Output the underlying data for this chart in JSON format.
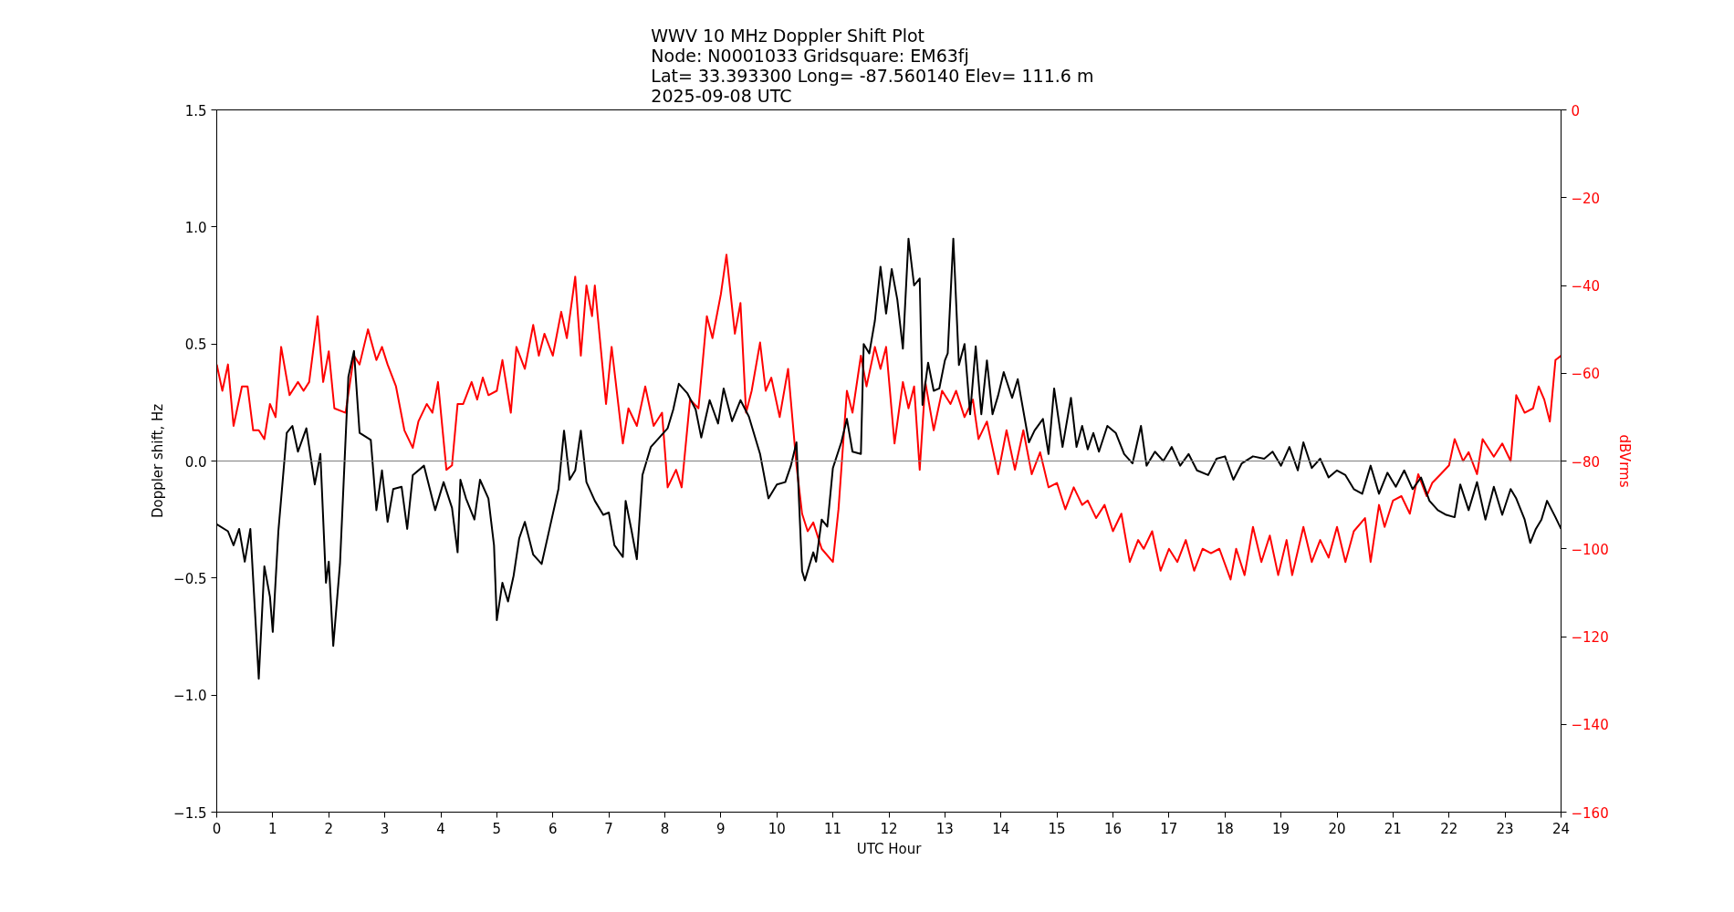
{
  "chart_data": {
    "type": "line",
    "title": "WWV 10 MHz Doppler Shift Plot\nNode:  N0001033     Gridsquare:  EM63fj\nLat= 33.393300    Long= -87.560140    Elev= 111.6 m\n2025-09-08  UTC",
    "xlabel": "UTC Hour",
    "ylabel": "Doppler shift, Hz",
    "y2label": "dBVrms",
    "xlim": [
      0,
      24
    ],
    "xticks": [
      0,
      1,
      2,
      3,
      4,
      5,
      6,
      7,
      8,
      9,
      10,
      11,
      12,
      13,
      14,
      15,
      16,
      17,
      18,
      19,
      20,
      21,
      22,
      23,
      24
    ],
    "ylim": [
      -1.5,
      1.5
    ],
    "yticks": [
      {
        "value": -1.5,
        "label": "−1.5"
      },
      {
        "value": -1.0,
        "label": "−1.0"
      },
      {
        "value": -0.5,
        "label": "−0.5"
      },
      {
        "value": 0.0,
        "label": "0.0"
      },
      {
        "value": 0.5,
        "label": "0.5"
      },
      {
        "value": 1.0,
        "label": "1.0"
      },
      {
        "value": 1.5,
        "label": "1.5"
      }
    ],
    "y2lim": [
      -160,
      0
    ],
    "y2ticks": [
      {
        "value": -160,
        "label": "−160"
      },
      {
        "value": -140,
        "label": "−140"
      },
      {
        "value": -120,
        "label": "−120"
      },
      {
        "value": -100,
        "label": "−100"
      },
      {
        "value": -80,
        "label": "−80"
      },
      {
        "value": -60,
        "label": "−60"
      },
      {
        "value": -40,
        "label": "−40"
      },
      {
        "value": -20,
        "label": "−20"
      },
      0
    ],
    "grid": false,
    "line_style": "solid",
    "marker": "none",
    "ref_lines": [
      {
        "axis": "y",
        "value": 0,
        "color": "#808080"
      }
    ],
    "series": [
      {
        "color": "#ff0000",
        "axis": "y2",
        "x": [
          0,
          0.1,
          0.2,
          0.3,
          0.45,
          0.55,
          0.65,
          0.75,
          0.85,
          0.95,
          1.05,
          1.15,
          1.3,
          1.45,
          1.55,
          1.65,
          1.8,
          1.9,
          2.0,
          2.1,
          2.3,
          2.45,
          2.55,
          2.7,
          2.85,
          2.95,
          3.05,
          3.2,
          3.35,
          3.5,
          3.6,
          3.75,
          3.85,
          3.95,
          4.1,
          4.2,
          4.3,
          4.4,
          4.55,
          4.65,
          4.75,
          4.85,
          5.0,
          5.1,
          5.25,
          5.35,
          5.5,
          5.65,
          5.75,
          5.85,
          6.0,
          6.15,
          6.25,
          6.4,
          6.5,
          6.6,
          6.7,
          6.75,
          6.95,
          7.05,
          7.25,
          7.35,
          7.5,
          7.65,
          7.8,
          7.95,
          8.05,
          8.2,
          8.3,
          8.45,
          8.6,
          8.75,
          8.85,
          9.0,
          9.1,
          9.25,
          9.35,
          9.45,
          9.55,
          9.7,
          9.8,
          9.9,
          10.05,
          10.2,
          10.35,
          10.45,
          10.55,
          10.65,
          10.8,
          11.0,
          11.1,
          11.25,
          11.35,
          11.5,
          11.6,
          11.75,
          11.85,
          11.95,
          12.1,
          12.25,
          12.35,
          12.45,
          12.55,
          12.65,
          12.8,
          12.95,
          13.1,
          13.2,
          13.35,
          13.5,
          13.6,
          13.75,
          13.95,
          14.1,
          14.25,
          14.4,
          14.55,
          14.7,
          14.85,
          15.0,
          15.15,
          15.3,
          15.45,
          15.55,
          15.7,
          15.85,
          16.0,
          16.15,
          16.3,
          16.45,
          16.55,
          16.7,
          16.85,
          17.0,
          17.15,
          17.3,
          17.45,
          17.6,
          17.75,
          17.9,
          18.1,
          18.2,
          18.35,
          18.5,
          18.65,
          18.8,
          18.95,
          19.1,
          19.2,
          19.4,
          19.55,
          19.7,
          19.85,
          20.0,
          20.15,
          20.3,
          20.5,
          20.6,
          20.75,
          20.85,
          21.0,
          21.15,
          21.3,
          21.45,
          21.6,
          21.7,
          21.85,
          22.0,
          22.1,
          22.25,
          22.35,
          22.5,
          22.6,
          22.8,
          22.95,
          23.1,
          23.2,
          23.35,
          23.5,
          23.6,
          23.7,
          23.8,
          23.9,
          24.0
        ],
        "values": [
          -58,
          -64,
          -58,
          -72,
          -63,
          -63,
          -73,
          -73,
          -75,
          -67,
          -70,
          -54,
          -65,
          -62,
          -64,
          -62,
          -47,
          -62,
          -55,
          -68,
          -69,
          -56,
          -58,
          -50,
          -57,
          -54,
          -58,
          -63,
          -73,
          -77,
          -71,
          -67,
          -69,
          -62,
          -82,
          -81,
          -67,
          -67,
          -62,
          -66,
          -61,
          -65,
          -64,
          -57,
          -69,
          -54,
          -59,
          -49,
          -56,
          -51,
          -56,
          -46,
          -52,
          -38,
          -56,
          -40,
          -47,
          -40,
          -67,
          -54,
          -76,
          -68,
          -72,
          -63,
          -72,
          -69,
          -86,
          -82,
          -86,
          -66,
          -68,
          -47,
          -52,
          -42,
          -33,
          -51,
          -44,
          -69,
          -64,
          -53,
          -64,
          -61,
          -70,
          -59,
          -81,
          -92,
          -96,
          -94,
          -100,
          -103,
          -91,
          -64,
          -69,
          -56,
          -63,
          -54,
          -59,
          -54,
          -76,
          -62,
          -68,
          -63,
          -82,
          -62,
          -73,
          -64,
          -67,
          -64,
          -70,
          -66,
          -75,
          -71,
          -83,
          -73,
          -82,
          -73,
          -83,
          -78,
          -86,
          -85,
          -91,
          -86,
          -90,
          -89,
          -93,
          -90,
          -96,
          -92,
          -103,
          -98,
          -100,
          -96,
          -105,
          -100,
          -103,
          -98,
          -105,
          -100,
          -101,
          -100,
          -107,
          -100,
          -106,
          -95,
          -103,
          -97,
          -106,
          -98,
          -106,
          -95,
          -103,
          -98,
          -102,
          -95,
          -103,
          -96,
          -93,
          -103,
          -90,
          -95,
          -89,
          -88,
          -92,
          -83,
          -88,
          -85,
          -83,
          -81,
          -75,
          -80,
          -78,
          -83,
          -75,
          -79,
          -76,
          -80,
          -65,
          -69,
          -68,
          -63,
          -66,
          -71,
          -57,
          -56
        ]
      },
      {
        "color": "#000000",
        "x": [
          0,
          0.2,
          0.3,
          0.4,
          0.5,
          0.6,
          0.75,
          0.85,
          0.95,
          1.0,
          1.1,
          1.2,
          1.25,
          1.35,
          1.45,
          1.6,
          1.75,
          1.85,
          1.95,
          2.0,
          2.08,
          2.2,
          2.35,
          2.45,
          2.55,
          2.75,
          2.85,
          2.95,
          3.05,
          3.15,
          3.3,
          3.4,
          3.5,
          3.7,
          3.9,
          4.05,
          4.2,
          4.3,
          4.35,
          4.45,
          4.6,
          4.7,
          4.85,
          4.95,
          5.0,
          5.1,
          5.2,
          5.3,
          5.4,
          5.5,
          5.65,
          5.8,
          5.95,
          6.1,
          6.2,
          6.3,
          6.4,
          6.5,
          6.6,
          6.75,
          6.9,
          7.0,
          7.1,
          7.25,
          7.3,
          7.4,
          7.5,
          7.6,
          7.75,
          7.9,
          8.05,
          8.15,
          8.25,
          8.4,
          8.55,
          8.65,
          8.8,
          8.95,
          9.05,
          9.2,
          9.35,
          9.5,
          9.7,
          9.85,
          10.0,
          10.15,
          10.25,
          10.35,
          10.45,
          10.5,
          10.65,
          10.7,
          10.8,
          10.9,
          11.0,
          11.15,
          11.25,
          11.35,
          11.5,
          11.55,
          11.65,
          11.75,
          11.85,
          11.95,
          12.05,
          12.15,
          12.25,
          12.35,
          12.45,
          12.55,
          12.6,
          12.7,
          12.8,
          12.9,
          13.0,
          13.05,
          13.15,
          13.25,
          13.35,
          13.45,
          13.55,
          13.65,
          13.75,
          13.85,
          13.95,
          14.05,
          14.2,
          14.3,
          14.5,
          14.6,
          14.75,
          14.85,
          14.95,
          15.1,
          15.25,
          15.35,
          15.45,
          15.55,
          15.65,
          15.75,
          15.9,
          16.05,
          16.2,
          16.35,
          16.5,
          16.6,
          16.75,
          16.9,
          17.05,
          17.2,
          17.35,
          17.5,
          17.7,
          17.85,
          18.0,
          18.15,
          18.3,
          18.5,
          18.7,
          18.85,
          19.0,
          19.15,
          19.3,
          19.4,
          19.55,
          19.7,
          19.85,
          20.0,
          20.15,
          20.3,
          20.45,
          20.6,
          20.75,
          20.9,
          21.05,
          21.2,
          21.35,
          21.5,
          21.65,
          21.8,
          21.95,
          22.1,
          22.2,
          22.35,
          22.5,
          22.65,
          22.8,
          22.95,
          23.1,
          23.2,
          23.35,
          23.45,
          23.55,
          23.65,
          23.75,
          23.9,
          24.0
        ],
        "values": [
          -0.27,
          -0.3,
          -0.36,
          -0.29,
          -0.43,
          -0.29,
          -0.93,
          -0.45,
          -0.58,
          -0.73,
          -0.3,
          -0.02,
          0.12,
          0.15,
          0.04,
          0.14,
          -0.1,
          0.03,
          -0.52,
          -0.43,
          -0.79,
          -0.44,
          0.36,
          0.47,
          0.12,
          0.09,
          -0.21,
          -0.04,
          -0.26,
          -0.12,
          -0.11,
          -0.29,
          -0.06,
          -0.02,
          -0.21,
          -0.09,
          -0.2,
          -0.39,
          -0.08,
          -0.16,
          -0.25,
          -0.08,
          -0.16,
          -0.36,
          -0.68,
          -0.52,
          -0.6,
          -0.49,
          -0.33,
          -0.26,
          -0.4,
          -0.44,
          -0.28,
          -0.12,
          0.13,
          -0.08,
          -0.04,
          0.13,
          -0.09,
          -0.17,
          -0.23,
          -0.22,
          -0.36,
          -0.41,
          -0.17,
          -0.29,
          -0.42,
          -0.06,
          0.06,
          0.1,
          0.14,
          0.22,
          0.33,
          0.29,
          0.22,
          0.1,
          0.26,
          0.16,
          0.31,
          0.17,
          0.26,
          0.19,
          0.03,
          -0.16,
          -0.1,
          -0.09,
          -0.02,
          0.08,
          -0.47,
          -0.51,
          -0.39,
          -0.43,
          -0.25,
          -0.28,
          -0.03,
          0.08,
          0.18,
          0.04,
          0.03,
          0.5,
          0.46,
          0.6,
          0.83,
          0.63,
          0.82,
          0.69,
          0.48,
          0.95,
          0.75,
          0.78,
          0.24,
          0.42,
          0.3,
          0.31,
          0.43,
          0.46,
          0.95,
          0.41,
          0.5,
          0.2,
          0.49,
          0.2,
          0.43,
          0.2,
          0.28,
          0.38,
          0.27,
          0.35,
          0.08,
          0.13,
          0.18,
          0.03,
          0.31,
          0.06,
          0.27,
          0.06,
          0.15,
          0.05,
          0.12,
          0.04,
          0.15,
          0.12,
          0.03,
          -0.01,
          0.15,
          -0.02,
          0.04,
          0.0,
          0.06,
          -0.02,
          0.03,
          -0.04,
          -0.06,
          0.01,
          0.02,
          -0.08,
          -0.01,
          0.02,
          0.01,
          0.04,
          -0.02,
          0.06,
          -0.04,
          0.08,
          -0.03,
          0.01,
          -0.07,
          -0.04,
          -0.06,
          -0.12,
          -0.14,
          -0.02,
          -0.14,
          -0.05,
          -0.11,
          -0.04,
          -0.12,
          -0.07,
          -0.17,
          -0.21,
          -0.23,
          -0.24,
          -0.1,
          -0.21,
          -0.09,
          -0.25,
          -0.11,
          -0.23,
          -0.12,
          -0.16,
          -0.25,
          -0.35,
          -0.29,
          -0.25,
          -0.17,
          -0.24,
          -0.29
        ]
      }
    ]
  }
}
